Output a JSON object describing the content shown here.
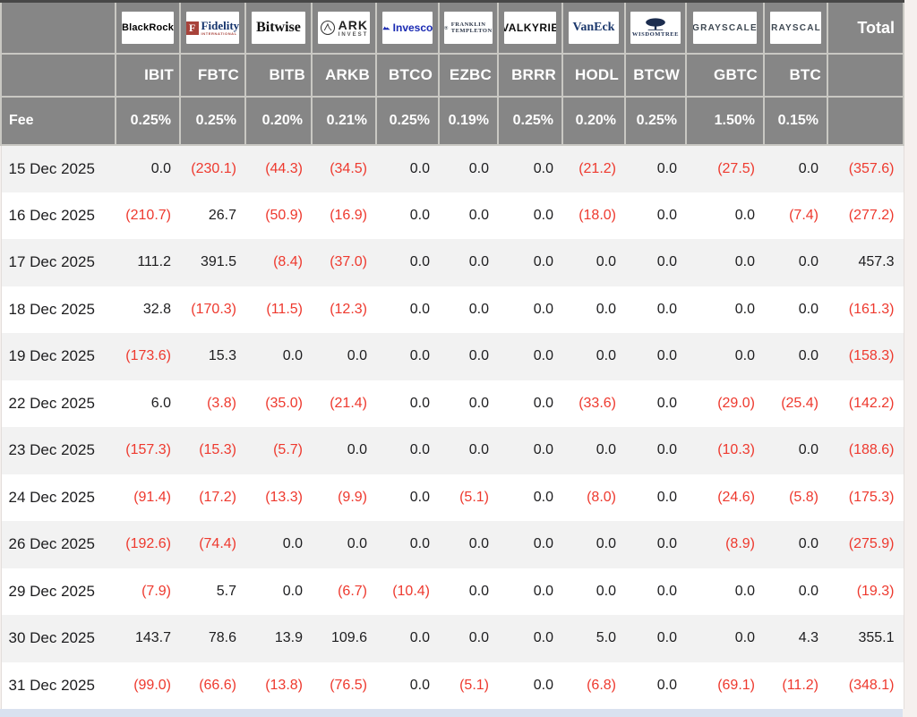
{
  "colors": {
    "header_gray": "#868686",
    "stripe_gray": "#f2f2f2",
    "negative_red": "#ee392e",
    "invesco_blue": "#1b2bb3",
    "fidelity_red": "#a8423a",
    "fidelity_blue": "#16356d",
    "vaneck_navy": "#1e3a6e"
  },
  "table": {
    "fee_label": "Fee",
    "total_label": "Total",
    "columns": [
      {
        "issuer": "BlackRock",
        "ticker": "IBIT",
        "fee": "0.25%"
      },
      {
        "issuer": "Fidelity",
        "issuer_sub": "INTERNATIONAL",
        "icon_letter": "F",
        "ticker": "FBTC",
        "fee": "0.25%"
      },
      {
        "issuer": "Bitwise",
        "ticker": "BITB",
        "fee": "0.20%"
      },
      {
        "issuer": "ARK",
        "issuer_sub": "INVEST",
        "ticker": "ARKB",
        "fee": "0.21%"
      },
      {
        "issuer": "Invesco",
        "ticker": "BTCO",
        "fee": "0.25%"
      },
      {
        "issuer": "FRANKLIN",
        "issuer_sub": "TEMPLETON",
        "ticker": "EZBC",
        "fee": "0.19%"
      },
      {
        "issuer": "VALKYRIE",
        "ticker": "BRRR",
        "fee": "0.25%"
      },
      {
        "issuer": "VanEck",
        "ticker": "HODL",
        "fee": "0.20%"
      },
      {
        "issuer": "WISDOMTREE",
        "ticker": "BTCW",
        "fee": "0.25%"
      },
      {
        "issuer": "GRAYSCALE",
        "ticker": "GBTC",
        "fee": "1.50%"
      },
      {
        "issuer": "GRAYSCALE",
        "ticker": "BTC",
        "fee": "0.15%"
      }
    ],
    "rows": [
      {
        "date": "15 Dec 2025",
        "values": [
          "0.0",
          "(230.1)",
          "(44.3)",
          "(34.5)",
          "0.0",
          "0.0",
          "0.0",
          "(21.2)",
          "0.0",
          "(27.5)",
          "0.0",
          "(357.6)"
        ]
      },
      {
        "date": "16 Dec 2025",
        "values": [
          "(210.7)",
          "26.7",
          "(50.9)",
          "(16.9)",
          "0.0",
          "0.0",
          "0.0",
          "(18.0)",
          "0.0",
          "0.0",
          "(7.4)",
          "(277.2)"
        ]
      },
      {
        "date": "17 Dec 2025",
        "values": [
          "111.2",
          "391.5",
          "(8.4)",
          "(37.0)",
          "0.0",
          "0.0",
          "0.0",
          "0.0",
          "0.0",
          "0.0",
          "0.0",
          "457.3"
        ]
      },
      {
        "date": "18 Dec 2025",
        "values": [
          "32.8",
          "(170.3)",
          "(11.5)",
          "(12.3)",
          "0.0",
          "0.0",
          "0.0",
          "0.0",
          "0.0",
          "0.0",
          "0.0",
          "(161.3)"
        ]
      },
      {
        "date": "19 Dec 2025",
        "values": [
          "(173.6)",
          "15.3",
          "0.0",
          "0.0",
          "0.0",
          "0.0",
          "0.0",
          "0.0",
          "0.0",
          "0.0",
          "0.0",
          "(158.3)"
        ]
      },
      {
        "date": "22 Dec 2025",
        "values": [
          "6.0",
          "(3.8)",
          "(35.0)",
          "(21.4)",
          "0.0",
          "0.0",
          "0.0",
          "(33.6)",
          "0.0",
          "(29.0)",
          "(25.4)",
          "(142.2)"
        ]
      },
      {
        "date": "23 Dec 2025",
        "values": [
          "(157.3)",
          "(15.3)",
          "(5.7)",
          "0.0",
          "0.0",
          "0.0",
          "0.0",
          "0.0",
          "0.0",
          "(10.3)",
          "0.0",
          "(188.6)"
        ]
      },
      {
        "date": "24 Dec 2025",
        "values": [
          "(91.4)",
          "(17.2)",
          "(13.3)",
          "(9.9)",
          "0.0",
          "(5.1)",
          "0.0",
          "(8.0)",
          "0.0",
          "(24.6)",
          "(5.8)",
          "(175.3)"
        ]
      },
      {
        "date": "26 Dec 2025",
        "values": [
          "(192.6)",
          "(74.4)",
          "0.0",
          "0.0",
          "0.0",
          "0.0",
          "0.0",
          "0.0",
          "0.0",
          "(8.9)",
          "0.0",
          "(275.9)"
        ]
      },
      {
        "date": "29 Dec 2025",
        "values": [
          "(7.9)",
          "5.7",
          "0.0",
          "(6.7)",
          "(10.4)",
          "0.0",
          "0.0",
          "0.0",
          "0.0",
          "0.0",
          "0.0",
          "(19.3)"
        ]
      },
      {
        "date": "30 Dec 2025",
        "values": [
          "143.7",
          "78.6",
          "13.9",
          "109.6",
          "0.0",
          "0.0",
          "0.0",
          "5.0",
          "0.0",
          "0.0",
          "4.3",
          "355.1"
        ]
      },
      {
        "date": "31 Dec 2025",
        "values": [
          "(99.0)",
          "(66.6)",
          "(13.8)",
          "(76.5)",
          "0.0",
          "(5.1)",
          "0.0",
          "(6.8)",
          "0.0",
          "(69.1)",
          "(11.2)",
          "(348.1)"
        ]
      }
    ]
  },
  "chart_data": {
    "type": "table",
    "tickers": [
      "IBIT",
      "FBTC",
      "BITB",
      "ARKB",
      "BTCO",
      "EZBC",
      "BRRR",
      "HODL",
      "BTCW",
      "GBTC",
      "BTC",
      "Total"
    ],
    "issuers": [
      "BlackRock",
      "Fidelity",
      "Bitwise",
      "ARK Invest",
      "Invesco",
      "Franklin Templeton",
      "Valkyrie",
      "VanEck",
      "WisdomTree",
      "Grayscale",
      "Grayscale",
      ""
    ],
    "fees_pct": [
      0.25,
      0.25,
      0.2,
      0.21,
      0.25,
      0.19,
      0.25,
      0.2,
      0.25,
      1.5,
      0.15,
      null
    ],
    "dates": [
      "15 Dec 2025",
      "16 Dec 2025",
      "17 Dec 2025",
      "18 Dec 2025",
      "19 Dec 2025",
      "22 Dec 2025",
      "23 Dec 2025",
      "24 Dec 2025",
      "26 Dec 2025",
      "29 Dec 2025",
      "30 Dec 2025",
      "31 Dec 2025"
    ],
    "values": [
      [
        0.0,
        -230.1,
        -44.3,
        -34.5,
        0.0,
        0.0,
        0.0,
        -21.2,
        0.0,
        -27.5,
        0.0,
        -357.6
      ],
      [
        -210.7,
        26.7,
        -50.9,
        -16.9,
        0.0,
        0.0,
        0.0,
        -18.0,
        0.0,
        0.0,
        -7.4,
        -277.2
      ],
      [
        111.2,
        391.5,
        -8.4,
        -37.0,
        0.0,
        0.0,
        0.0,
        0.0,
        0.0,
        0.0,
        0.0,
        457.3
      ],
      [
        32.8,
        -170.3,
        -11.5,
        -12.3,
        0.0,
        0.0,
        0.0,
        0.0,
        0.0,
        0.0,
        0.0,
        -161.3
      ],
      [
        -173.6,
        15.3,
        0.0,
        0.0,
        0.0,
        0.0,
        0.0,
        0.0,
        0.0,
        0.0,
        0.0,
        -158.3
      ],
      [
        6.0,
        -3.8,
        -35.0,
        -21.4,
        0.0,
        0.0,
        0.0,
        -33.6,
        0.0,
        -29.0,
        -25.4,
        -142.2
      ],
      [
        -157.3,
        -15.3,
        -5.7,
        0.0,
        0.0,
        0.0,
        0.0,
        0.0,
        0.0,
        -10.3,
        0.0,
        -188.6
      ],
      [
        -91.4,
        -17.2,
        -13.3,
        -9.9,
        0.0,
        -5.1,
        0.0,
        -8.0,
        0.0,
        -24.6,
        -5.8,
        -175.3
      ],
      [
        -192.6,
        -74.4,
        0.0,
        0.0,
        0.0,
        0.0,
        0.0,
        0.0,
        0.0,
        -8.9,
        0.0,
        -275.9
      ],
      [
        -7.9,
        5.7,
        0.0,
        -6.7,
        -10.4,
        0.0,
        0.0,
        0.0,
        0.0,
        0.0,
        0.0,
        -19.3
      ],
      [
        143.7,
        78.6,
        13.9,
        109.6,
        0.0,
        0.0,
        0.0,
        5.0,
        0.0,
        0.0,
        4.3,
        355.1
      ],
      [
        -99.0,
        -66.6,
        -13.8,
        -76.5,
        0.0,
        -5.1,
        0.0,
        -6.8,
        0.0,
        -69.1,
        -11.2,
        -348.1
      ]
    ],
    "notes": "values in parentheses shown red (negative flows)"
  }
}
